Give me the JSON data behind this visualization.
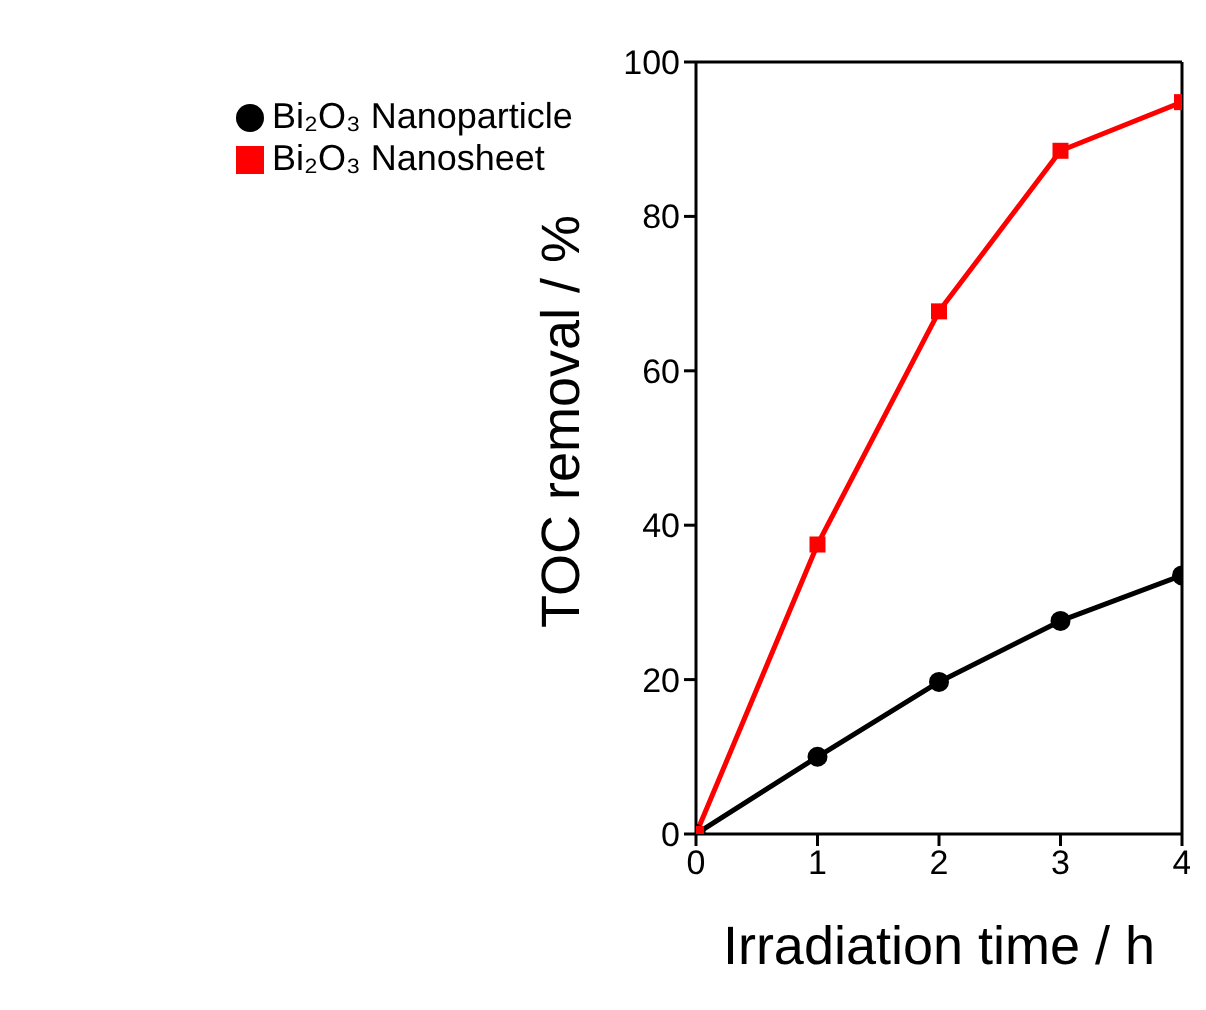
{
  "chart_data": {
    "type": "line",
    "xlabel": "Irradiation time / h",
    "ylabel": "TOC removal / %",
    "x": [
      0,
      1,
      2,
      3,
      4
    ],
    "series": [
      {
        "name": "Bi₂O₃ Nanoparticle",
        "color": "#000000",
        "marker": "circle",
        "values": [
          0,
          10,
          19.7,
          27.6,
          33.5
        ]
      },
      {
        "name": "Bi₂O₃ Nanosheet",
        "color": "#ff0000",
        "marker": "square",
        "values": [
          0,
          37.5,
          67.7,
          88.5,
          94.8
        ]
      }
    ],
    "xlim": [
      0,
      4
    ],
    "xticks": [
      0,
      1,
      2,
      3,
      4
    ],
    "ylim": [
      0,
      100
    ],
    "yticks": [
      0,
      20,
      40,
      60,
      80,
      100
    ],
    "grid": false,
    "legend": "top left",
    "line_style": "solid"
  }
}
